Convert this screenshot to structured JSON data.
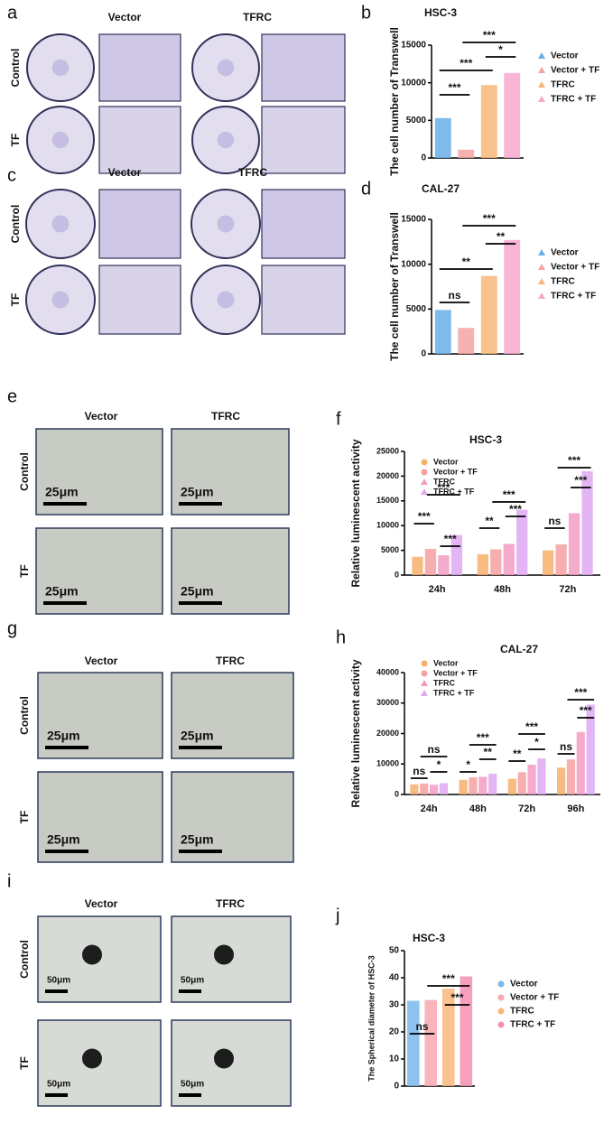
{
  "panels": [
    {
      "label": "a",
      "columns": [
        "Vector",
        "TFRC"
      ],
      "rows": [
        "Control",
        "TF"
      ]
    },
    {
      "label": "c",
      "columns": [
        "Vector",
        "TFRC"
      ],
      "rows": [
        "Control",
        "TF"
      ]
    },
    {
      "label": "e",
      "columns": [
        "Vector",
        "TFRC"
      ],
      "rows": [
        "Control",
        "TF"
      ],
      "scale_bar": "25μm"
    },
    {
      "label": "g",
      "columns": [
        "Vector",
        "TFRC"
      ],
      "rows": [
        "Control",
        "TF"
      ],
      "scale_bar": "25μm"
    },
    {
      "label": "i",
      "columns": [
        "Vector",
        "TFRC"
      ],
      "rows": [
        "Control",
        "TF"
      ],
      "scale_bar": "50μm"
    }
  ],
  "chart_data": [
    {
      "type": "bar",
      "panel": "b",
      "title": "HSC-3",
      "y_label": "The cell number of Transwell",
      "categories": [
        "Vector",
        "Vector + TF",
        "TFRC",
        "TFRC + TF"
      ],
      "values": [
        5300,
        1100,
        9700,
        11300
      ],
      "colors": [
        "#6aaee6",
        "#f5a3a3",
        "#f9b77a",
        "#f7a8cc"
      ],
      "marker": "triangle",
      "ylim": [
        0,
        15000
      ],
      "yticks": [
        0,
        5000,
        10000,
        15000
      ],
      "annotations": [
        "***",
        "***",
        "*",
        "***"
      ]
    },
    {
      "type": "bar",
      "panel": "d",
      "title": "CAL-27",
      "y_label": "The cell number of Transwell",
      "categories": [
        "Vector",
        "Vector + TF",
        "TFRC",
        "TFRC + TF"
      ],
      "values": [
        4900,
        2900,
        8700,
        12700
      ],
      "colors": [
        "#6aaee6",
        "#f5a3a3",
        "#f9b77a",
        "#f7a8cc"
      ],
      "marker": "triangle",
      "ylim": [
        0,
        15000
      ],
      "yticks": [
        0,
        5000,
        10000,
        15000
      ],
      "annotations": [
        "ns",
        "**",
        "**",
        "***"
      ]
    },
    {
      "type": "grouped_bar",
      "panel": "f",
      "title": "HSC-3",
      "y_label": "Relative luminescent activity",
      "categories": [
        "24h",
        "48h",
        "72h"
      ],
      "series": [
        {
          "name": "Vector",
          "color": "#f7b06c",
          "marker": "circle",
          "values": [
            3700,
            4200,
            5000
          ]
        },
        {
          "name": "Vector + TF",
          "color": "#f5a0a0",
          "marker": "circle",
          "values": [
            5300,
            5200,
            6200
          ]
        },
        {
          "name": "TFRC",
          "color": "#f39cc2",
          "marker": "triangle",
          "values": [
            4000,
            6300,
            12500
          ]
        },
        {
          "name": "TFRC + TF",
          "color": "#dfa8f2",
          "marker": "triangle",
          "values": [
            8100,
            13200,
            21000
          ]
        }
      ],
      "ylim": [
        0,
        25000
      ],
      "yticks": [
        0,
        5000,
        10000,
        15000,
        20000,
        25000
      ],
      "annotations": [
        "***",
        "***",
        "***",
        "**",
        "***",
        "***",
        "ns",
        "***",
        "***"
      ]
    },
    {
      "type": "grouped_bar",
      "panel": "h",
      "title": "CAL-27",
      "y_label": "Relative luminescent activity",
      "categories": [
        "24h",
        "48h",
        "72h",
        "96h"
      ],
      "series": [
        {
          "name": "Vector",
          "color": "#f7b06c",
          "marker": "circle",
          "values": [
            3300,
            4800,
            5200,
            8800
          ]
        },
        {
          "name": "Vector + TF",
          "color": "#f5a0a0",
          "marker": "circle",
          "values": [
            3600,
            5600,
            7300,
            11500
          ]
        },
        {
          "name": "TFRC",
          "color": "#f39cc2",
          "marker": "triangle",
          "values": [
            3200,
            5800,
            9800,
            20500
          ]
        },
        {
          "name": "TFRC + TF",
          "color": "#dfa8f2",
          "marker": "triangle",
          "values": [
            3700,
            6800,
            11800,
            29500
          ]
        }
      ],
      "ylim": [
        0,
        40000
      ],
      "yticks": [
        0,
        10000,
        20000,
        30000,
        40000
      ],
      "annotations": [
        "ns",
        "ns",
        "*",
        "*",
        "***",
        "**",
        "**",
        "***",
        "*",
        "ns",
        "***",
        "***"
      ]
    },
    {
      "type": "bar",
      "panel": "j",
      "title": "HSC-3",
      "y_label": "The Spherical diameter of HSC-3",
      "categories": [
        "Vector",
        "Vector + TF",
        "TFRC",
        "TFRC + TF"
      ],
      "values": [
        31.5,
        31.8,
        36,
        40.5
      ],
      "colors": [
        "#7ab8ec",
        "#f7a8b0",
        "#f9b77a",
        "#f58fb0"
      ],
      "marker": "circle",
      "ylim": [
        0,
        50
      ],
      "yticks": [
        0,
        10,
        20,
        30,
        40,
        50
      ],
      "annotations": [
        "ns",
        "***",
        "***"
      ]
    }
  ]
}
